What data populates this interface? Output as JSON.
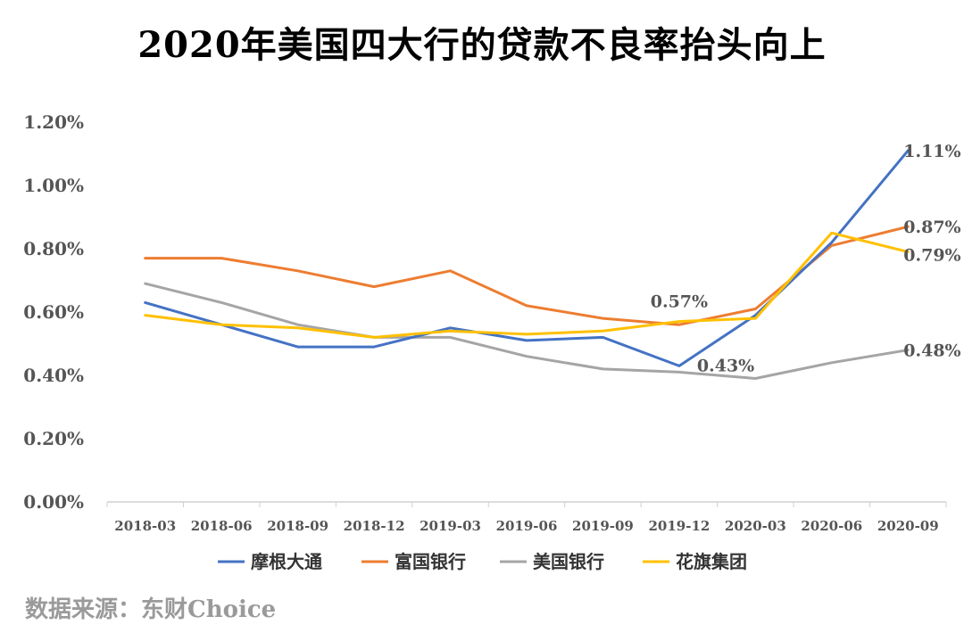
{
  "title": "2020年美国四大行的贷款不良率抬头向上",
  "source": "数据来源：东财Choice",
  "chart_data": {
    "type": "line",
    "title": "2020年美国四大行的贷款不良率抬头向上",
    "categories": [
      "2018-03",
      "2018-06",
      "2018-09",
      "2018-12",
      "2019-03",
      "2019-06",
      "2019-09",
      "2019-12",
      "2020-03",
      "2020-06",
      "2020-09"
    ],
    "y_ticks": [
      "0.00%",
      "0.20%",
      "0.40%",
      "0.60%",
      "0.80%",
      "1.00%",
      "1.20%"
    ],
    "ylim": [
      0,
      1.2
    ],
    "y_unit": "%",
    "grid": false,
    "legend": "bottom",
    "series": [
      {
        "name": "摩根大通",
        "color": "#4472C4",
        "values": [
          0.63,
          0.56,
          0.49,
          0.49,
          0.55,
          0.51,
          0.52,
          0.43,
          0.59,
          0.82,
          1.11
        ]
      },
      {
        "name": "富国银行",
        "color": "#ED7D31",
        "values": [
          0.77,
          0.77,
          0.73,
          0.68,
          0.73,
          0.62,
          0.58,
          0.56,
          0.61,
          0.81,
          0.87
        ]
      },
      {
        "name": "美国银行",
        "color": "#A5A5A5",
        "values": [
          0.69,
          0.63,
          0.56,
          0.52,
          0.52,
          0.46,
          0.42,
          0.41,
          0.39,
          0.44,
          0.48
        ]
      },
      {
        "name": "花旗集团",
        "color": "#FFC000",
        "values": [
          0.59,
          0.56,
          0.55,
          0.52,
          0.54,
          0.53,
          0.54,
          0.57,
          0.58,
          0.85,
          0.79
        ]
      }
    ],
    "annotations": [
      {
        "series": 0,
        "index": 10,
        "text": "1.11%"
      },
      {
        "series": 1,
        "index": 10,
        "text": "0.87%"
      },
      {
        "series": 3,
        "index": 10,
        "text": "0.79%"
      },
      {
        "series": 2,
        "index": 10,
        "text": "0.48%"
      },
      {
        "series": 3,
        "index": 7,
        "text": "0.57%"
      },
      {
        "series": 0,
        "index": 7,
        "text": "0.43%"
      }
    ]
  }
}
